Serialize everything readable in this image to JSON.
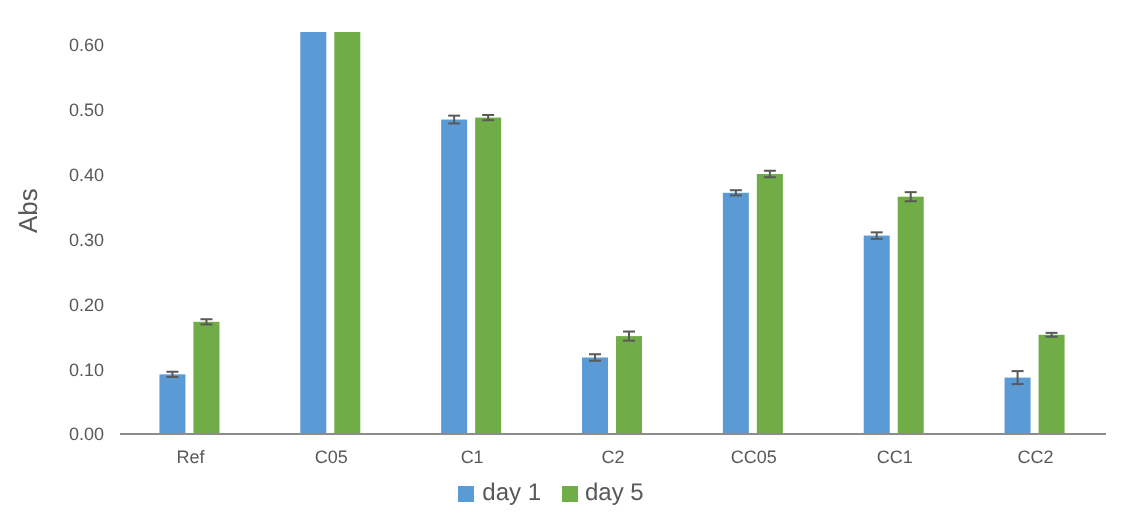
{
  "chart_data": {
    "type": "bar",
    "ylabel": "Abs",
    "categories": [
      "Ref",
      "C05",
      "C1",
      "C2",
      "CC05",
      "CC1",
      "CC2"
    ],
    "series": [
      {
        "name": "day 1",
        "color": "#5b9bd5",
        "values": [
          0.092,
          0.62,
          0.485,
          0.118,
          0.372,
          0.306,
          0.087
        ],
        "errors": [
          0.004,
          null,
          0.006,
          0.005,
          0.004,
          0.005,
          0.01
        ]
      },
      {
        "name": "day 5",
        "color": "#70ad47",
        "values": [
          0.173,
          0.62,
          0.488,
          0.151,
          0.401,
          0.366,
          0.153
        ],
        "errors": [
          0.004,
          null,
          0.004,
          0.007,
          0.005,
          0.007,
          0.003
        ]
      }
    ],
    "ylim": [
      0,
      0.62
    ],
    "yticks": [
      {
        "value": 0,
        "label": "0.00"
      },
      {
        "value": 0.1,
        "label": "0.10"
      },
      {
        "value": 0.2,
        "label": "0.20"
      },
      {
        "value": 0.3,
        "label": "0.30"
      },
      {
        "value": 0.4,
        "label": "0.40"
      },
      {
        "value": 0.5,
        "label": "0.50"
      },
      {
        "value": 0.6,
        "label": "0.60"
      }
    ],
    "grid": false,
    "legend": "bottom"
  }
}
